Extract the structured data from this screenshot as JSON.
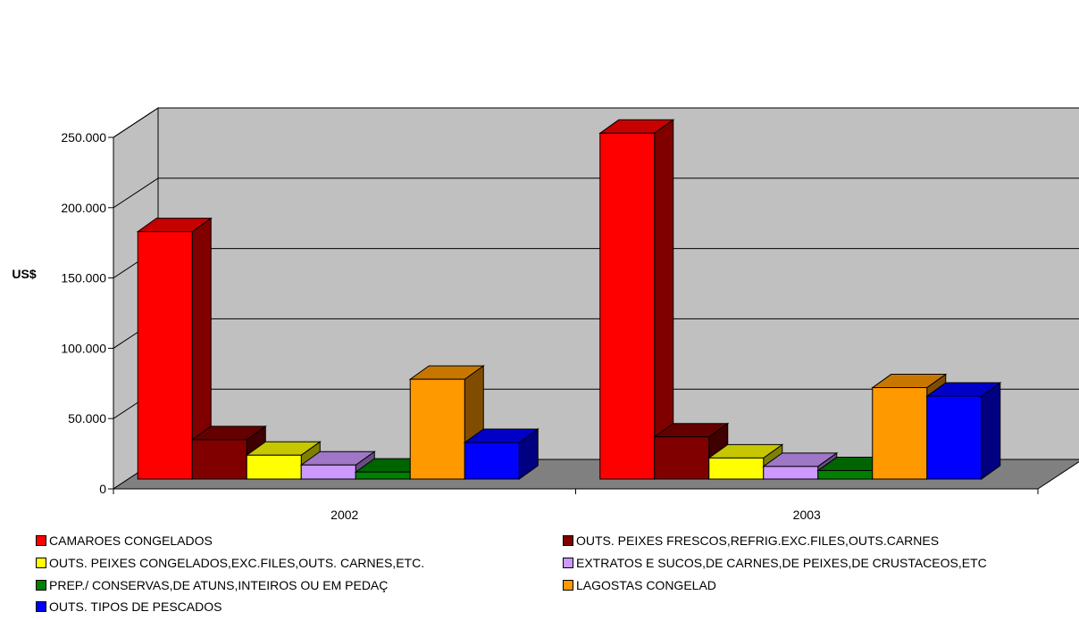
{
  "chart_data": {
    "type": "bar",
    "categories": [
      "2002",
      "2003"
    ],
    "ylabel": "US$",
    "ylim": [
      0,
      250000
    ],
    "y_ticks": [
      0,
      50000,
      100000,
      150000,
      200000,
      250000
    ],
    "y_tick_labels": [
      "0",
      "50.000",
      "100.000",
      "150.000",
      "200.000",
      "250.000"
    ],
    "grid": true,
    "legend_position": "bottom",
    "series": [
      {
        "name": "CAMAROES CONGELADOS",
        "values": [
          176000,
          246000
        ],
        "color": "#ff0000"
      },
      {
        "name": "OUTS. PEIXES FRESCOS,REFRIG.EXC.FILES,OUTS.CARNES",
        "values": [
          28000,
          30000
        ],
        "color": "#800000"
      },
      {
        "name": "OUTS. PEIXES CONGELADOS,EXC.FILES,OUTS. CARNES,ETC.",
        "values": [
          17000,
          15000
        ],
        "color": "#ffff00"
      },
      {
        "name": "EXTRATOS E SUCOS,DE CARNES,DE PEIXES,DE CRUSTACEOS,ETC",
        "values": [
          10000,
          9000
        ],
        "color": "#cc99ff"
      },
      {
        "name": "PREP./ CONSERVAS,DE ATUNS,INTEIROS OU EM PEDAÇ",
        "values": [
          5000,
          6000
        ],
        "color": "#008000"
      },
      {
        "name": "LAGOSTAS  CONGELAD",
        "values": [
          71000,
          65000
        ],
        "color": "#ff9900"
      },
      {
        "name": "OUTS. TIPOS DE PESCADOS",
        "values": [
          26000,
          59000
        ],
        "color": "#0000ff"
      }
    ]
  }
}
